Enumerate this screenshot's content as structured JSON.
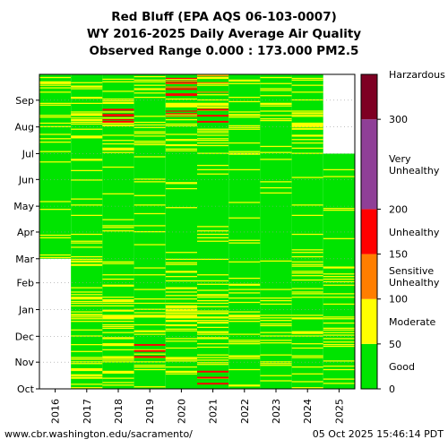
{
  "title_lines": [
    "Red Bluff (EPA AQS 06-103-0007)",
    "WY 2016-2025 Daily Average Air Quality",
    "Observed Range 0.000 : 173.000 PM2.5"
  ],
  "footer": {
    "source": "www.cbr.washington.edu/sacramento/",
    "timestamp": "05 Oct 2025 15:46:14 PDT"
  },
  "chart_data": {
    "type": "heatmap",
    "x_categories": [
      "2016",
      "2017",
      "2018",
      "2019",
      "2020",
      "2021",
      "2022",
      "2023",
      "2024",
      "2025"
    ],
    "y_months": [
      "Oct",
      "Nov",
      "Dec",
      "Jan",
      "Feb",
      "Mar",
      "Apr",
      "May",
      "Jun",
      "Jul",
      "Aug",
      "Sep"
    ],
    "colorbar": {
      "bands": [
        {
          "from": 0,
          "to": 50,
          "label": "Good",
          "color": "#00e400"
        },
        {
          "from": 50,
          "to": 100,
          "label": "Moderate",
          "color": "#ffff00"
        },
        {
          "from": 100,
          "to": 150,
          "label": "Sensitive Unhealthy",
          "color": "#ff7e00"
        },
        {
          "from": 150,
          "to": 200,
          "label": "Unhealthy",
          "color": "#ff0000"
        },
        {
          "from": 200,
          "to": 300,
          "label": "Very Unhealthy",
          "color": "#8f3f97"
        },
        {
          "from": 300,
          "to": 350,
          "label": "Harzardous",
          "color": "#7e0023"
        }
      ],
      "ticks": [
        "0",
        "50",
        "100",
        "150",
        "200",
        "300"
      ],
      "top_label": "Harzardous"
    },
    "no_data_color": "#ffffff",
    "no_data_ranges": [
      {
        "year": "2016",
        "from_month": "Oct",
        "to_month": "Feb"
      },
      {
        "year": "2025",
        "from_month": "Jul",
        "to_month": "Sep"
      }
    ],
    "notable_days": [
      {
        "year": "2018",
        "month": "Aug",
        "category": "Unhealthy"
      },
      {
        "year": "2019",
        "month": "Nov",
        "category": "Unhealthy"
      },
      {
        "year": "2020",
        "month": "Sep",
        "category": "Unhealthy"
      },
      {
        "year": "2021",
        "month": "Aug",
        "category": "Unhealthy"
      },
      {
        "year": "2021",
        "month": "Oct",
        "category": "Unhealthy"
      }
    ],
    "grid": "dotted"
  }
}
